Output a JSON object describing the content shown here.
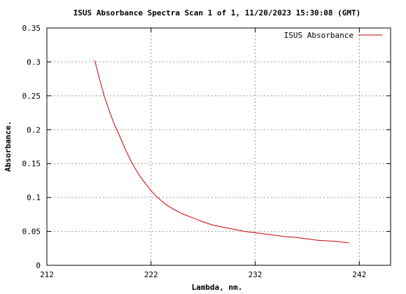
{
  "chart_data": {
    "type": "line",
    "title": "ISUS Absorbance Spectra Scan 1 of 1, 11/20/2023 15:30:08 (GMT)",
    "xlabel": "Lambda, nm.",
    "ylabel": "Absorbance.",
    "xlim": [
      212,
      245
    ],
    "ylim": [
      0,
      0.35
    ],
    "x_ticks": [
      "212",
      "222",
      "232",
      "242"
    ],
    "y_ticks": [
      "0",
      "0.05",
      "0.1",
      "0.15",
      "0.2",
      "0.25",
      "0.3",
      "0.35"
    ],
    "grid": true,
    "legend_position": "top-right",
    "series": [
      {
        "name": "ISUS Absorbance",
        "color": "#cc0000",
        "x": [
          216.6,
          217.0,
          217.5,
          218.0,
          218.5,
          219.0,
          219.5,
          220.0,
          220.5,
          221.0,
          221.5,
          222.0,
          222.5,
          223.0,
          223.5,
          224.0,
          224.5,
          225.0,
          226.0,
          227.0,
          228.0,
          229.0,
          230.0,
          231.0,
          232.0,
          233.0,
          234.0,
          235.0,
          236.0,
          237.0,
          238.0,
          239.0,
          240.0,
          241.0
        ],
        "y": [
          0.302,
          0.278,
          0.25,
          0.227,
          0.207,
          0.19,
          0.172,
          0.156,
          0.142,
          0.13,
          0.12,
          0.11,
          0.102,
          0.095,
          0.089,
          0.084,
          0.08,
          0.076,
          0.07,
          0.064,
          0.059,
          0.056,
          0.053,
          0.05,
          0.048,
          0.046,
          0.044,
          0.042,
          0.041,
          0.039,
          0.037,
          0.036,
          0.035,
          0.033
        ]
      }
    ]
  }
}
